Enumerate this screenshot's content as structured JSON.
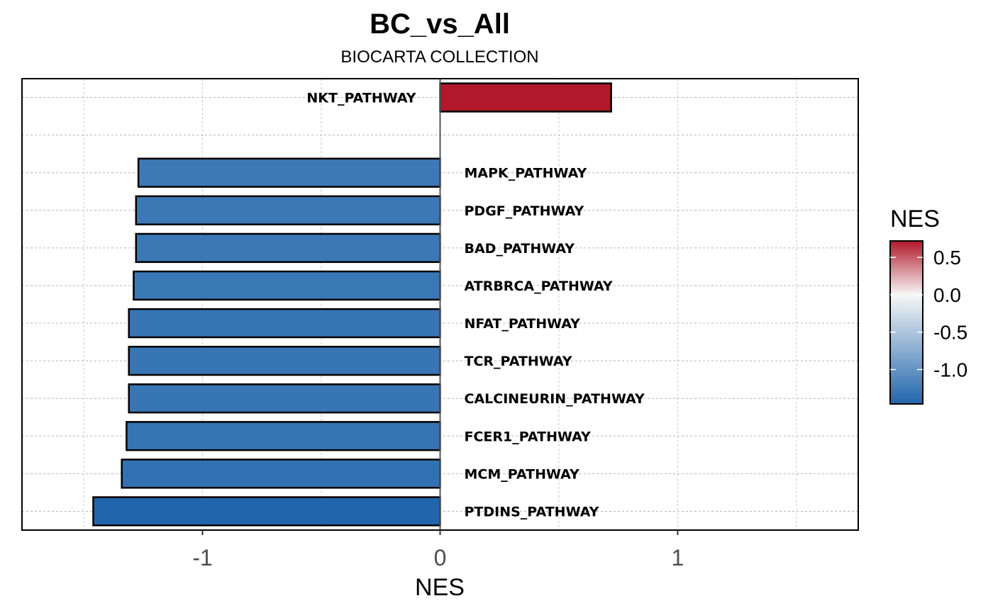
{
  "chart_data": {
    "type": "bar",
    "orientation": "horizontal",
    "title": "BC_vs_All",
    "subtitle": "BIOCARTA COLLECTION",
    "xlabel": "NES",
    "ylabel": "",
    "xlim": [
      -1.76,
      1.76
    ],
    "x_ticks": [
      -1,
      0,
      1
    ],
    "x_tick_labels": [
      "-1",
      "0",
      "1"
    ],
    "grid": true,
    "categories": [
      "NKT_PATHWAY",
      "",
      "MAPK_PATHWAY",
      "PDGF_PATHWAY",
      "BAD_PATHWAY",
      "ATRBRCA_PATHWAY",
      "NFAT_PATHWAY",
      "TCR_PATHWAY",
      "CALCINEURIN_PATHWAY",
      "FCER1_PATHWAY",
      "MCM_PATHWAY",
      "PTDINS_PATHWAY"
    ],
    "values": [
      0.72,
      null,
      -1.27,
      -1.28,
      -1.28,
      -1.29,
      -1.31,
      -1.31,
      -1.31,
      -1.32,
      -1.34,
      -1.46
    ],
    "legend": {
      "title": "NES",
      "position": "right",
      "ticks": [
        0.5,
        0.0,
        -0.5,
        -1.0
      ],
      "tick_labels": [
        "0.5",
        "0.0",
        "-0.5",
        "-1.0"
      ],
      "range": [
        -1.46,
        0.72
      ],
      "color_low": "#2166ac",
      "color_mid": "#f7f7f7",
      "color_high": "#b2182b"
    }
  }
}
